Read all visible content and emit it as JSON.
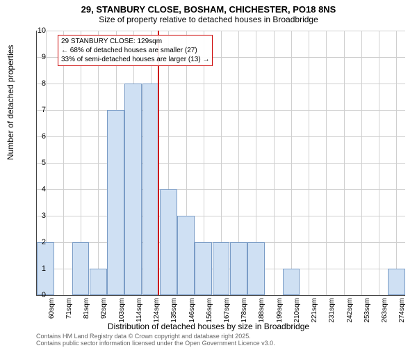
{
  "title": "29, STANBURY CLOSE, BOSHAM, CHICHESTER, PO18 8NS",
  "subtitle": "Size of property relative to detached houses in Broadbridge",
  "chart": {
    "type": "histogram",
    "ylabel": "Number of detached properties",
    "xlabel": "Distribution of detached houses by size in Broadbridge",
    "ylim": [
      0,
      10
    ],
    "ytick_step": 1,
    "bar_fill": "#cfe0f3",
    "bar_border": "#7a9cc6",
    "grid_color": "#cfcfcf",
    "background": "#ffffff",
    "bar_width_ratio": 0.98,
    "ref_line": {
      "x_index": 6.9,
      "color": "#cc0000"
    },
    "categories": [
      "60sqm",
      "71sqm",
      "81sqm",
      "92sqm",
      "103sqm",
      "114sqm",
      "124sqm",
      "135sqm",
      "146sqm",
      "156sqm",
      "167sqm",
      "178sqm",
      "188sqm",
      "199sqm",
      "210sqm",
      "221sqm",
      "231sqm",
      "242sqm",
      "253sqm",
      "263sqm",
      "274sqm"
    ],
    "values": [
      2,
      0,
      2,
      1,
      7,
      8,
      8,
      4,
      3,
      2,
      2,
      2,
      2,
      0,
      1,
      0,
      0,
      0,
      0,
      0,
      1
    ],
    "annotation": {
      "lines": [
        "29 STANBURY CLOSE: 129sqm",
        "← 68% of detached houses are smaller (27)",
        "33% of semi-detached houses are larger (13) →"
      ],
      "border_color": "#cc0000"
    }
  },
  "footer": {
    "line1": "Contains HM Land Registry data © Crown copyright and database right 2025.",
    "line2": "Contains public sector information licensed under the Open Government Licence v3.0."
  }
}
